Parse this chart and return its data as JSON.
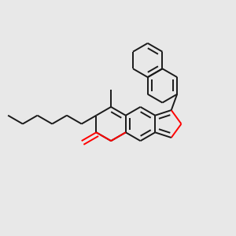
{
  "bg_color": "#e8e8e8",
  "bond_color": "#1a1a1a",
  "oxygen_color": "#ff0000",
  "lw": 1.4,
  "dbo": 0.018,
  "figsize": [
    3.0,
    3.0
  ],
  "dpi": 100,
  "xlim": [
    0.0,
    1.0
  ],
  "ylim": [
    0.0,
    1.0
  ]
}
